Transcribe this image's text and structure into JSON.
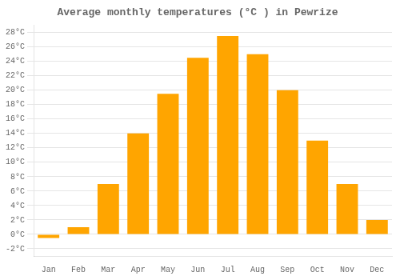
{
  "chart_data": {
    "type": "bar",
    "title": "Average monthly temperatures (°C ) in Pewrize",
    "categories": [
      "Jan",
      "Feb",
      "Mar",
      "Apr",
      "May",
      "Jun",
      "Jul",
      "Aug",
      "Sep",
      "Oct",
      "Nov",
      "Dec"
    ],
    "values": [
      -0.5,
      1.0,
      7.0,
      14.0,
      19.5,
      24.5,
      27.5,
      25.0,
      20.0,
      13.0,
      7.0,
      2.0
    ],
    "color": "#FFA500",
    "ylim": [
      -3,
      29
    ],
    "yticks": [
      {
        "value": -2,
        "label": "-2°C"
      },
      {
        "value": 0,
        "label": "0°C"
      },
      {
        "value": 2,
        "label": "2°C"
      },
      {
        "value": 4,
        "label": "4°C"
      },
      {
        "value": 6,
        "label": "6°C"
      },
      {
        "value": 8,
        "label": "8°C"
      },
      {
        "value": 10,
        "label": "10°C"
      },
      {
        "value": 12,
        "label": "12°C"
      },
      {
        "value": 14,
        "label": "14°C"
      },
      {
        "value": 16,
        "label": "16°C"
      },
      {
        "value": 18,
        "label": "18°C"
      },
      {
        "value": 20,
        "label": "20°C"
      },
      {
        "value": 22,
        "label": "22°C"
      },
      {
        "value": 24,
        "label": "24°C"
      },
      {
        "value": 26,
        "label": "26°C"
      },
      {
        "value": 28,
        "label": "28°C"
      }
    ],
    "grid": true
  }
}
